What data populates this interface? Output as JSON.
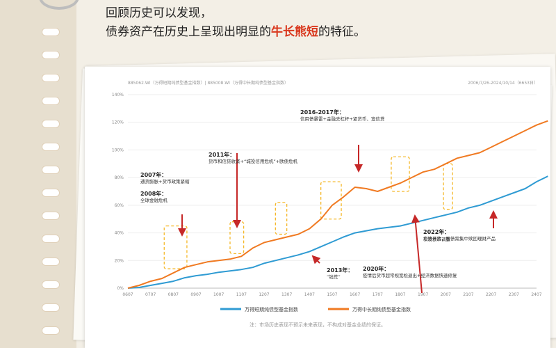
{
  "headline": {
    "line1": "回顾历史可以发现，",
    "line2_prefix": "债券资产在历史上呈现出明显的",
    "line2_highlight": "牛长熊短",
    "line2_suffix": "的特征。"
  },
  "header": {
    "left": "885062.WI（万得短期纯债型基金指数）| 885008.WI（万得中长期纯债型基金指数）",
    "right": "2006/7/26-2024/10/14（6653日）"
  },
  "colors": {
    "short": "#2f9bd3",
    "long": "#f07a22",
    "annotation_box": "#f5b829",
    "arrow": "#c62828"
  },
  "chart_data": {
    "type": "line",
    "x_ticks": [
      "0607",
      "0707",
      "0807",
      "0907",
      "1007",
      "1107",
      "1207",
      "1307",
      "1407",
      "1507",
      "1607",
      "1707",
      "1807",
      "1907",
      "2007",
      "2107",
      "2207",
      "2307",
      "2407"
    ],
    "ylim": [
      0,
      140
    ],
    "y_ticks": [
      "0%",
      "20%",
      "40%",
      "60%",
      "80%",
      "100%",
      "120%",
      "140%"
    ],
    "series": [
      {
        "name": "万得短期纯债型基金指数",
        "color": "#2f9bd3",
        "points": [
          [
            0,
            0
          ],
          [
            0.5,
            0.5
          ],
          [
            1,
            2
          ],
          [
            1.5,
            3.5
          ],
          [
            2,
            5
          ],
          [
            2.5,
            7.5
          ],
          [
            3,
            9
          ],
          [
            3.5,
            10
          ],
          [
            4,
            11.5
          ],
          [
            4.5,
            12.5
          ],
          [
            5,
            13.5
          ],
          [
            5.5,
            15
          ],
          [
            6,
            18
          ],
          [
            6.5,
            20
          ],
          [
            7,
            22
          ],
          [
            7.5,
            24
          ],
          [
            8,
            26.5
          ],
          [
            8.5,
            30
          ],
          [
            9,
            33.5
          ],
          [
            9.5,
            37
          ],
          [
            10,
            40
          ],
          [
            10.5,
            41.5
          ],
          [
            11,
            43
          ],
          [
            11.5,
            44
          ],
          [
            12,
            45
          ],
          [
            12.5,
            47
          ],
          [
            13,
            49
          ],
          [
            13.5,
            51
          ],
          [
            14,
            53
          ],
          [
            14.5,
            55
          ],
          [
            15,
            58
          ],
          [
            15.5,
            60
          ],
          [
            16,
            63
          ],
          [
            16.5,
            66
          ],
          [
            17,
            69
          ],
          [
            17.5,
            72
          ],
          [
            18,
            77
          ],
          [
            18.5,
            81
          ]
        ]
      },
      {
        "name": "万得中长期纯债型基金指数",
        "color": "#f07a22",
        "points": [
          [
            0,
            0
          ],
          [
            0.5,
            2
          ],
          [
            1,
            5
          ],
          [
            1.5,
            7
          ],
          [
            2,
            11
          ],
          [
            2.5,
            15
          ],
          [
            3,
            17
          ],
          [
            3.5,
            19
          ],
          [
            4,
            20
          ],
          [
            4.5,
            21
          ],
          [
            5,
            23
          ],
          [
            5.5,
            29
          ],
          [
            6,
            33
          ],
          [
            6.5,
            35
          ],
          [
            7,
            37
          ],
          [
            7.5,
            39
          ],
          [
            8,
            43
          ],
          [
            8.5,
            50
          ],
          [
            9,
            60
          ],
          [
            9.5,
            66
          ],
          [
            10,
            73
          ],
          [
            10.5,
            72
          ],
          [
            11,
            70
          ],
          [
            11.5,
            73
          ],
          [
            12,
            76
          ],
          [
            12.5,
            80
          ],
          [
            13,
            84
          ],
          [
            13.5,
            86
          ],
          [
            14,
            90
          ],
          [
            14.5,
            94
          ],
          [
            15,
            96
          ],
          [
            15.5,
            98
          ],
          [
            16,
            102
          ],
          [
            16.5,
            106
          ],
          [
            17,
            110
          ],
          [
            17.5,
            114
          ],
          [
            18,
            118
          ],
          [
            18.5,
            121
          ]
        ]
      }
    ],
    "annotations": [
      {
        "title": "2007年：",
        "text": "通货膨胀+货币政策紧缩"
      },
      {
        "title": "2008年：",
        "text": "全球金融危机"
      },
      {
        "title": "2011年：",
        "text": "货币和信贷收紧+“城投信用危机”+欧债危机"
      },
      {
        "title": "2013年：",
        "text": "“钱荒”"
      },
      {
        "title": "2016-2017年：",
        "text": "信用债暴雷+金融去杠杆+紧货币、宽信贷"
      },
      {
        "title": "2020年：",
        "text": "疫情后货币超常规宽松退出+经济数据快速修复"
      },
      {
        "title": "2022年：",
        "text": "疫情开放，股债需集中赎回理财产品"
      },
      {
        "title": "",
        "text": "引发债市调整"
      }
    ],
    "legend": [
      "万得短期纯债型基金指数",
      "万得中长期纯债型基金指数"
    ]
  },
  "note": "注：市场历史表现不预示未来表现，不构成对基金业绩的保证。"
}
